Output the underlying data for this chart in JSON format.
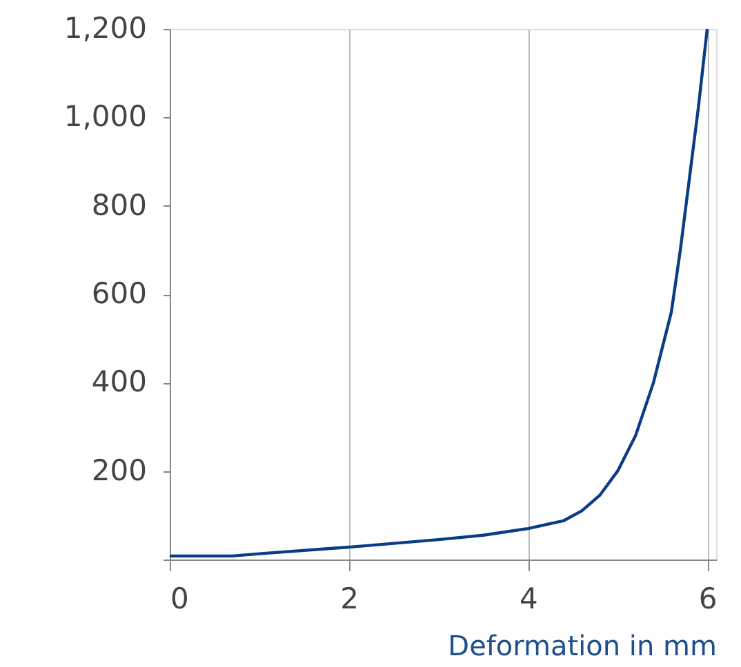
{
  "chart_data": {
    "type": "line",
    "xlabel": "Deformation in mm",
    "x": [
      0,
      0.7,
      1,
      2,
      3,
      3.5,
      4,
      4.4,
      4.6,
      4.8,
      5.0,
      5.2,
      5.4,
      5.6,
      5.7,
      5.8,
      5.9,
      6
    ],
    "series": [
      {
        "color": "#0a3d85",
        "values": [
          8,
          8,
          13,
          28,
          45,
          55,
          70,
          88,
          110,
          145,
          200,
          280,
          400,
          560,
          700,
          860,
          1020,
          1200
        ]
      }
    ],
    "xlim": [
      0,
      6.1
    ],
    "xticks": [
      0,
      2,
      4,
      6
    ],
    "ylim": [
      0,
      1200
    ],
    "yticks": [
      {
        "value": 0,
        "label": null
      },
      200,
      400,
      600,
      800,
      {
        "value": 1000,
        "label": "1,000"
      },
      {
        "value": 1200,
        "label": "1,200"
      }
    ],
    "grid": "x",
    "marker": "none",
    "line_style": "solid"
  }
}
